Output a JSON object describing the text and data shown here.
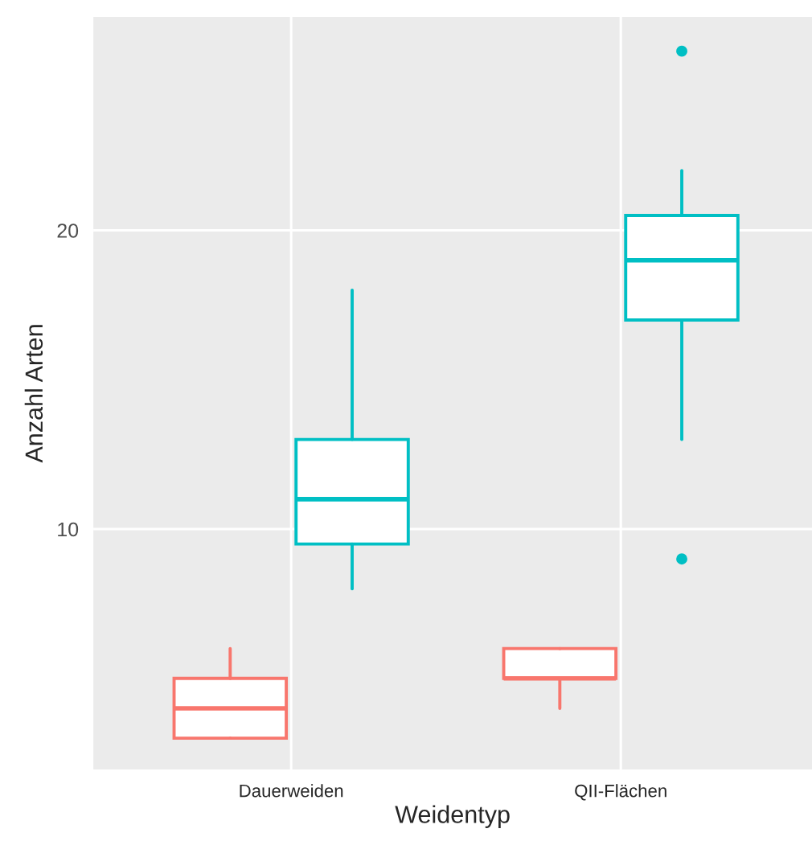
{
  "chart_data": {
    "type": "box",
    "xlabel": "Weidentyp",
    "ylabel": "Anzahl Arten",
    "categories": [
      "Dauerweiden",
      "QII-Flächen"
    ],
    "series": [
      {
        "color": "#f8766d",
        "boxes": [
          {
            "low": 3,
            "q1": 3,
            "median": 4,
            "q3": 5,
            "high": 6
          },
          {
            "low": 4,
            "q1": 5,
            "median": 5,
            "q3": 6,
            "high": 6
          }
        ]
      },
      {
        "color": "#00bfc4",
        "boxes": [
          {
            "low": 8,
            "q1": 9.5,
            "median": 11,
            "q3": 13,
            "high": 18
          },
          {
            "low": 13,
            "q1": 17,
            "median": 19,
            "q3": 20.5,
            "high": 22,
            "outliers": [
              26,
              9
            ]
          }
        ]
      }
    ],
    "ylim": [
      1.95,
      27.15
    ],
    "yticks": [
      10,
      20
    ],
    "grid": true
  }
}
